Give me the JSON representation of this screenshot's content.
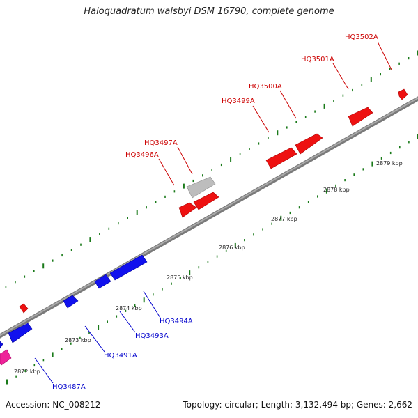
{
  "title": "Haloquadratum walsbyi DSM 16790, complete genome",
  "footer": {
    "accession": "Accession: NC_008212",
    "summary": "Topology: circular; Length: 3,132,494 bp; Genes: 2,662"
  },
  "colors": {
    "backbone": "#8a8a8a",
    "tick": "#1a7a1a",
    "forward_gene": "#ee1111",
    "reverse_gene": "#1111ee",
    "pseudogene": "#bbbbbb",
    "rna_gene": "#ee2299",
    "forward_label": "#cc0000",
    "reverse_label": "#0000cc"
  },
  "ruler": {
    "unit": "kbp",
    "labels": [
      "2872 kbp",
      "2873 kbp",
      "2874 kbp",
      "2875 kbp",
      "2876 kbp",
      "2877 kbp",
      "2878 kbp",
      "2879 kbp"
    ]
  },
  "genes": [
    {
      "id": "HQ3487A",
      "strand": "reverse",
      "label": "HQ3487A"
    },
    {
      "id": "HQ3491A",
      "strand": "reverse",
      "label": "HQ3491A"
    },
    {
      "id": "HQ3493A",
      "strand": "reverse",
      "label": "HQ3493A"
    },
    {
      "id": "HQ3494A",
      "strand": "reverse",
      "label": "HQ3494A"
    },
    {
      "id": "HQ3496A",
      "strand": "forward",
      "label": "HQ3496A"
    },
    {
      "id": "HQ3497A",
      "strand": "forward",
      "label": "HQ3497A"
    },
    {
      "id": "HQ3499A",
      "strand": "forward",
      "label": "HQ3499A"
    },
    {
      "id": "HQ3500A",
      "strand": "forward",
      "label": "HQ3500A"
    },
    {
      "id": "HQ3501A",
      "strand": "forward",
      "label": "HQ3501A"
    },
    {
      "id": "HQ3502A",
      "strand": "forward",
      "label": "HQ3502A"
    }
  ]
}
